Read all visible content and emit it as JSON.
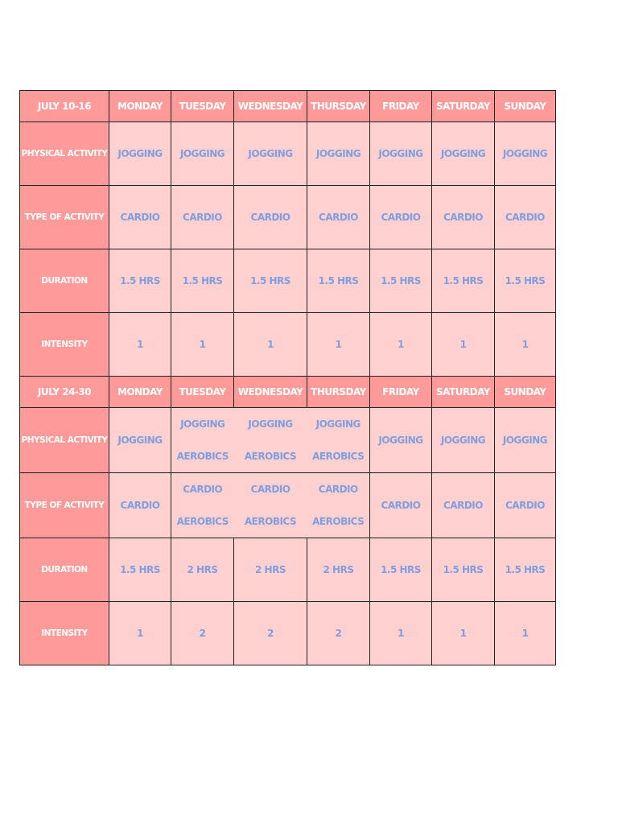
{
  "weeks": [
    {
      "label": "July 10-16",
      "days": [
        "Monday",
        "Tuesday",
        "Wednesday",
        "Thursday",
        "Friday",
        "Saturday",
        "Sunday"
      ],
      "rows": [
        {
          "label": "Physical Activity",
          "cells": [
            [
              "Jogging"
            ],
            [
              "Jogging"
            ],
            [
              "Jogging"
            ],
            [
              "Jogging"
            ],
            [
              "Jogging"
            ],
            [
              "Jogging"
            ],
            [
              "Jogging"
            ]
          ]
        },
        {
          "label": "Type of Activity",
          "cells": [
            [
              "Cardio"
            ],
            [
              "Cardio"
            ],
            [
              "Cardio"
            ],
            [
              "Cardio"
            ],
            [
              "Cardio"
            ],
            [
              "Cardio"
            ],
            [
              "Cardio"
            ]
          ]
        },
        {
          "label": "Duration",
          "cells": [
            [
              "1.5 hrs"
            ],
            [
              "1.5 hrs"
            ],
            [
              "1.5 hrs"
            ],
            [
              "1.5 hrs"
            ],
            [
              "1.5 hrs"
            ],
            [
              "1.5 hrs"
            ],
            [
              "1.5 hrs"
            ]
          ]
        },
        {
          "label": "Intensity",
          "cells": [
            [
              "1"
            ],
            [
              "1"
            ],
            [
              "1"
            ],
            [
              "1"
            ],
            [
              "1"
            ],
            [
              "1"
            ],
            [
              "1"
            ]
          ]
        }
      ]
    },
    {
      "label": "July 24-30",
      "days": [
        "Monday",
        "Tuesday",
        "Wednesday",
        "Thursday",
        "Friday",
        "Saturday",
        "Sunday"
      ],
      "rows": [
        {
          "label": "Physical Activity",
          "merged": true,
          "cells": [
            [
              "Jogging"
            ],
            [
              "Jogging",
              "Aerobics"
            ],
            [
              "Jogging",
              "Aerobics"
            ],
            [
              "Jogging",
              "Aerobics"
            ],
            [
              "Jogging"
            ],
            [
              "Jogging"
            ],
            [
              "Jogging"
            ]
          ]
        },
        {
          "label": "Type of Activity",
          "merged": true,
          "cells": [
            [
              "Cardio"
            ],
            [
              "Cardio",
              "Aerobics"
            ],
            [
              "Cardio",
              "Aerobics"
            ],
            [
              "Cardio",
              "Aerobics"
            ],
            [
              "Cardio"
            ],
            [
              "Cardio"
            ],
            [
              "Cardio"
            ]
          ]
        },
        {
          "label": "Duration",
          "cells": [
            [
              "1.5 hrs"
            ],
            [
              "2 hrs"
            ],
            [
              "2 hrs"
            ],
            [
              "2 hrs"
            ],
            [
              "1.5 hrs"
            ],
            [
              "1.5 hrs"
            ],
            [
              "1.5 hrs"
            ]
          ]
        },
        {
          "label": "Intensity",
          "cells": [
            [
              "1"
            ],
            [
              "2"
            ],
            [
              "2"
            ],
            [
              "2"
            ],
            [
              "1"
            ],
            [
              "1"
            ],
            [
              "1"
            ]
          ]
        }
      ]
    }
  ],
  "colors": {
    "header": "#ff9a9a",
    "cell": "#ffd0d0",
    "text": "#7f9fe0"
  }
}
